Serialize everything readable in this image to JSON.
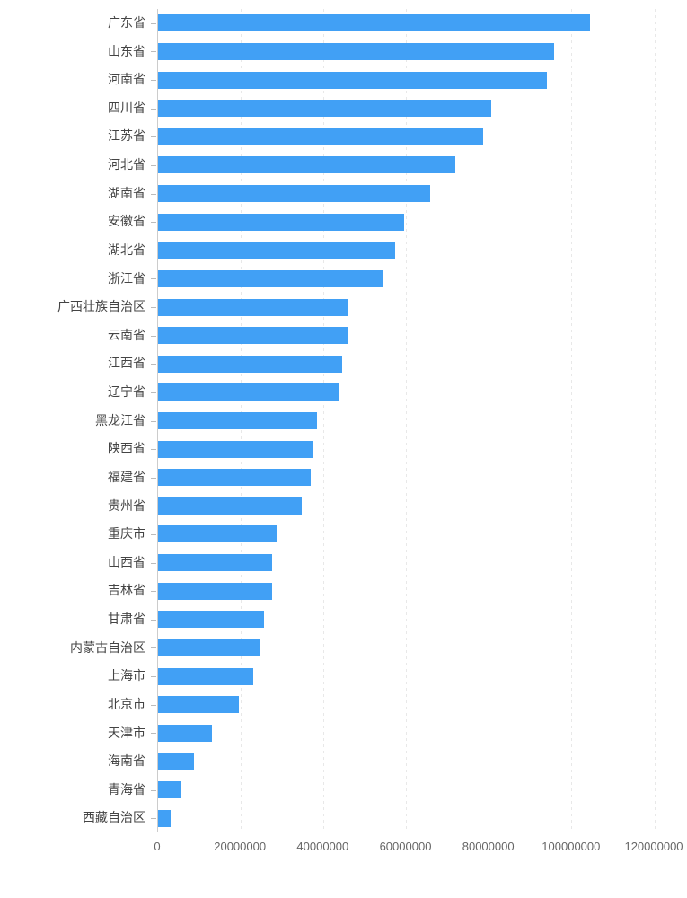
{
  "chart_data": {
    "type": "bar",
    "orientation": "horizontal",
    "title": "",
    "xlabel": "",
    "ylabel": "",
    "legend_position": "none",
    "grid": "vertical-dashed",
    "categories": [
      "广东省",
      "山东省",
      "河南省",
      "四川省",
      "江苏省",
      "河北省",
      "湖南省",
      "安徽省",
      "湖北省",
      "浙江省",
      "广西壮族自治区",
      "云南省",
      "江西省",
      "辽宁省",
      "黑龙江省",
      "陕西省",
      "福建省",
      "贵州省",
      "重庆市",
      "山西省",
      "吉林省",
      "甘肃省",
      "内蒙古自治区",
      "上海市",
      "北京市",
      "天津市",
      "海南省",
      "青海省",
      "西藏自治区"
    ],
    "values": [
      104303132,
      95793065,
      94023567,
      80418200,
      78659903,
      71854202,
      65683722,
      59500510,
      57237740,
      54426891,
      46026629,
      45966239,
      44567475,
      43746323,
      38312224,
      37327378,
      36894216,
      34746468,
      28846170,
      27500000,
      27462297,
      25575254,
      24706321,
      23019148,
      19612368,
      12938224,
      8671518,
      5626722,
      3002166
    ],
    "x_ticks": [
      0,
      20000000,
      40000000,
      60000000,
      80000000,
      100000000,
      120000000
    ],
    "x_tick_labels": [
      "0",
      "20000000",
      "40000000",
      "60000000",
      "80000000",
      "100000000",
      "120000000"
    ],
    "xlim": [
      0,
      120000000
    ],
    "colors": {
      "bar": "#41A0F5",
      "axis_line": "#cccccc",
      "axis_tick": "#bbbbbb",
      "grid_line": "#e8e8e8",
      "category_label": "#444444",
      "value_label": "#666666",
      "background": "#ffffff"
    }
  }
}
